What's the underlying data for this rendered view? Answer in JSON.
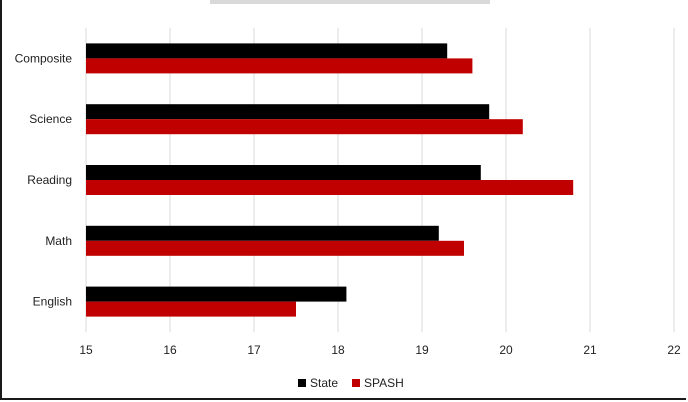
{
  "chart_data": {
    "type": "bar",
    "orientation": "horizontal",
    "categories": [
      "Composite",
      "Science",
      "Reading",
      "Math",
      "English"
    ],
    "series": [
      {
        "name": "State",
        "color": "#000000",
        "values": [
          19.3,
          19.8,
          19.7,
          19.2,
          18.1
        ]
      },
      {
        "name": "SPASH",
        "color": "#c00000",
        "values": [
          19.6,
          20.2,
          20.8,
          19.5,
          17.5
        ]
      }
    ],
    "xlim": [
      15,
      22
    ],
    "xticks": [
      15,
      16,
      17,
      18,
      19,
      20,
      21,
      22
    ],
    "grid": true,
    "legend_position": "bottom"
  }
}
